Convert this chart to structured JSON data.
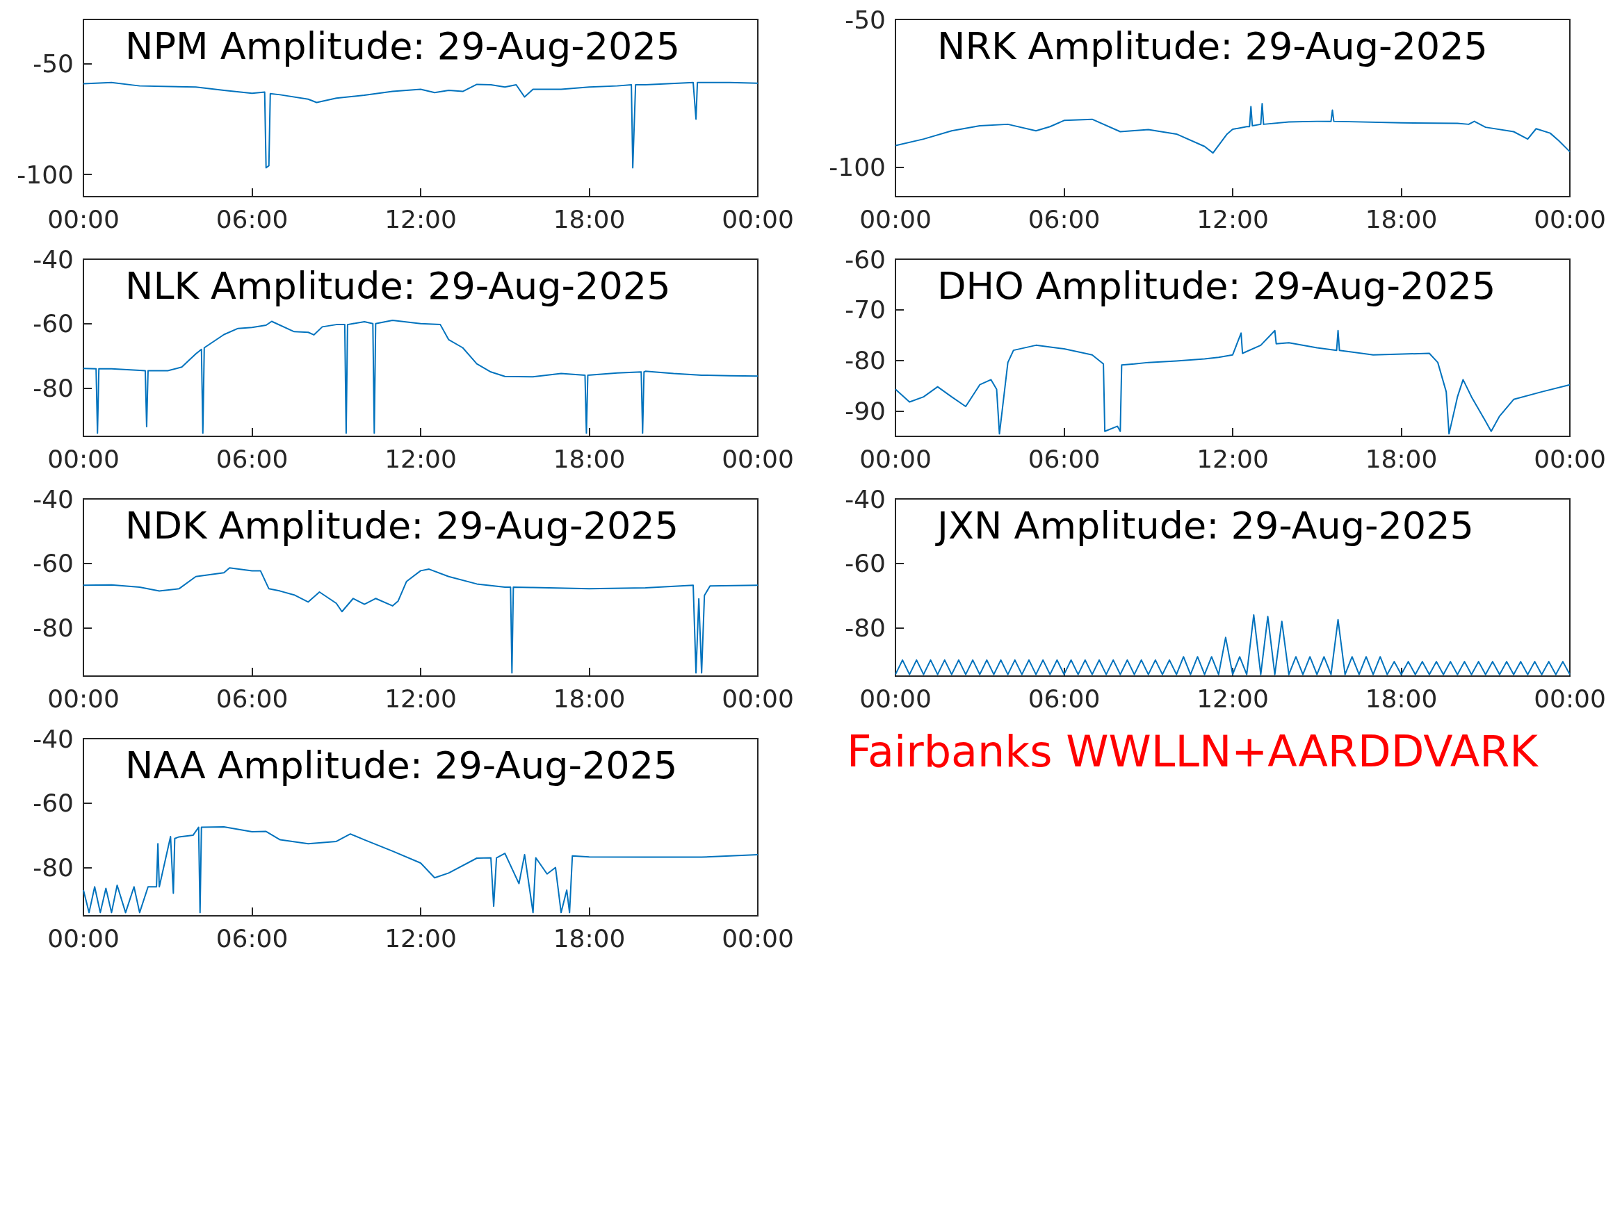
{
  "chart_data": [
    {
      "type": "line",
      "title": "NPM Amplitude: 29-Aug-2025",
      "color": "#0072bd",
      "marker": "none",
      "xlim": [
        0,
        24
      ],
      "xticks": [
        {
          "value": 0,
          "label": "00:00"
        },
        {
          "value": 6,
          "label": "06:00"
        },
        {
          "value": 12,
          "label": "12:00"
        },
        {
          "value": 18,
          "label": "18:00"
        },
        {
          "value": 24,
          "label": "00:00"
        }
      ],
      "ylim": [
        -110,
        -30
      ],
      "yticks": [
        -100,
        -50
      ],
      "x": [
        0,
        1,
        2,
        4,
        5,
        6,
        6.45,
        6.5,
        6.6,
        6.65,
        7,
        8,
        8.3,
        9,
        10,
        11,
        12,
        12.5,
        13,
        13.5,
        14,
        14.5,
        15,
        15.4,
        15.7,
        16,
        17,
        18,
        19,
        19.5,
        19.55,
        19.65,
        20,
        21.7,
        21.8,
        21.85,
        23,
        24
      ],
      "values": [
        -59,
        -58.5,
        -60,
        -60.5,
        -62,
        -63.3,
        -62.8,
        -97,
        -96,
        -63.5,
        -64,
        -66,
        -67.5,
        -65.5,
        -64.2,
        -62.5,
        -61.5,
        -63,
        -62,
        -62.5,
        -59.3,
        -59.5,
        -60.5,
        -59.5,
        -65,
        -61.5,
        -61.5,
        -60.5,
        -60,
        -59.5,
        -97,
        -59.5,
        -59.5,
        -58.5,
        -75,
        -58.5,
        -58.5,
        -58.8
      ]
    },
    {
      "type": "line",
      "title": "NRK Amplitude: 29-Aug-2025",
      "color": "#0072bd",
      "marker": "none",
      "xlim": [
        0,
        24
      ],
      "xticks": [
        {
          "value": 0,
          "label": "00:00"
        },
        {
          "value": 6,
          "label": "06:00"
        },
        {
          "value": 12,
          "label": "12:00"
        },
        {
          "value": 18,
          "label": "18:00"
        },
        {
          "value": 24,
          "label": "00:00"
        }
      ],
      "ylim": [
        -110,
        -50
      ],
      "yticks": [
        -100,
        -50
      ],
      "x": [
        0,
        1,
        2,
        3,
        4,
        5,
        5.5,
        6,
        7,
        8,
        9,
        10,
        11,
        11.3,
        11.8,
        12,
        12.5,
        12.6,
        12.65,
        12.7,
        13,
        13.05,
        13.1,
        14,
        15,
        15.5,
        15.55,
        15.6,
        18,
        20,
        20.4,
        20.6,
        21,
        22,
        22.5,
        22.8,
        23.3,
        23.6,
        24
      ],
      "values": [
        -92.7,
        -90.5,
        -87.7,
        -86,
        -85.5,
        -87.7,
        -86.3,
        -84.2,
        -83.8,
        -88,
        -87.3,
        -88.8,
        -93,
        -95.2,
        -88.8,
        -87.2,
        -86.3,
        -86.3,
        -79.5,
        -86,
        -85.5,
        -78.5,
        -85.5,
        -84.7,
        -84.5,
        -84.5,
        -80.7,
        -84.5,
        -85,
        -85.2,
        -85.5,
        -84.5,
        -86.5,
        -88,
        -90.5,
        -87,
        -88.5,
        -91,
        -94.8
      ]
    },
    {
      "type": "line",
      "title": "NLK Amplitude: 29-Aug-2025",
      "color": "#0072bd",
      "marker": "none",
      "xlim": [
        0,
        24
      ],
      "xticks": [
        {
          "value": 0,
          "label": "00:00"
        },
        {
          "value": 6,
          "label": "06:00"
        },
        {
          "value": 12,
          "label": "12:00"
        },
        {
          "value": 18,
          "label": "18:00"
        },
        {
          "value": 24,
          "label": "00:00"
        }
      ],
      "ylim": [
        -95,
        -40
      ],
      "yticks": [
        -80,
        -60,
        -40
      ],
      "x": [
        0,
        0.45,
        0.5,
        0.55,
        1,
        2,
        2.2,
        2.25,
        2.3,
        3,
        3.5,
        4,
        4.2,
        4.25,
        4.3,
        5,
        5.5,
        6,
        6.5,
        6.7,
        7.5,
        8,
        8.2,
        8.5,
        9,
        9.3,
        9.35,
        9.4,
        10,
        10.3,
        10.35,
        10.4,
        11,
        12,
        12.7,
        13,
        13.5,
        14,
        14.5,
        15,
        16,
        17,
        17.85,
        17.9,
        17.95,
        19,
        19.85,
        19.9,
        19.95,
        20,
        21,
        22,
        23,
        24
      ],
      "values": [
        -73.9,
        -74,
        -94,
        -74,
        -74,
        -74.5,
        -74.6,
        -92,
        -74.6,
        -74.6,
        -73.5,
        -69.4,
        -68,
        -94,
        -67.5,
        -63.4,
        -61.5,
        -61.2,
        -60.5,
        -59.3,
        -62.5,
        -62.7,
        -63.5,
        -61,
        -60.3,
        -60.3,
        -94,
        -60.3,
        -59.4,
        -60,
        -94,
        -60,
        -59,
        -60,
        -60.3,
        -65,
        -67.5,
        -72.5,
        -75,
        -76.4,
        -76.5,
        -75.5,
        -76,
        -94,
        -76,
        -75.3,
        -75,
        -94,
        -75,
        -74.8,
        -75.5,
        -76,
        -76.2,
        -76.3
      ]
    },
    {
      "type": "line",
      "title": "DHO Amplitude: 29-Aug-2025",
      "color": "#0072bd",
      "marker": "none",
      "xlim": [
        0,
        24
      ],
      "xticks": [
        {
          "value": 0,
          "label": "00:00"
        },
        {
          "value": 6,
          "label": "06:00"
        },
        {
          "value": 12,
          "label": "12:00"
        },
        {
          "value": 18,
          "label": "18:00"
        },
        {
          "value": 24,
          "label": "00:00"
        }
      ],
      "ylim": [
        -95,
        -60
      ],
      "yticks": [
        -90,
        -80,
        -70,
        -60
      ],
      "x": [
        0,
        0.5,
        1,
        1.5,
        2,
        2.5,
        3,
        3.4,
        3.6,
        3.7,
        4,
        4.2,
        5,
        6,
        7,
        7.4,
        7.45,
        7.9,
        8,
        8.05,
        8.5,
        9,
        10,
        11,
        11.5,
        12,
        12.3,
        12.35,
        13,
        13.5,
        13.55,
        14,
        15,
        15.7,
        15.75,
        15.8,
        17,
        19,
        19.3,
        19.6,
        19.7,
        20,
        20.2,
        20.5,
        21,
        21.2,
        21.5,
        22,
        23,
        24
      ],
      "values": [
        -85.7,
        -88.2,
        -87.2,
        -85.2,
        -87.2,
        -89.1,
        -84.8,
        -83.8,
        -85.7,
        -94.5,
        -80.4,
        -78,
        -77,
        -77.7,
        -78.9,
        -80.7,
        -94,
        -93,
        -94,
        -80.9,
        -80.7,
        -80.4,
        -80.1,
        -79.7,
        -79.4,
        -78.9,
        -74.6,
        -78.6,
        -77,
        -74.1,
        -76.7,
        -76.5,
        -77.5,
        -78,
        -74.1,
        -78,
        -78.9,
        -78.6,
        -80.4,
        -86.2,
        -94.5,
        -87.2,
        -83.8,
        -87.2,
        -92,
        -94,
        -91,
        -87.7,
        -86.2,
        -84.8
      ]
    },
    {
      "type": "line",
      "title": "NDK Amplitude: 29-Aug-2025",
      "color": "#0072bd",
      "marker": "none",
      "xlim": [
        0,
        24
      ],
      "xticks": [
        {
          "value": 0,
          "label": "00:00"
        },
        {
          "value": 6,
          "label": "06:00"
        },
        {
          "value": 12,
          "label": "12:00"
        },
        {
          "value": 18,
          "label": "18:00"
        },
        {
          "value": 24,
          "label": "00:00"
        }
      ],
      "ylim": [
        -95,
        -40
      ],
      "yticks": [
        -80,
        -60,
        -40
      ],
      "x": [
        0,
        1,
        2,
        2.7,
        3.4,
        4,
        5,
        5.2,
        6,
        6.3,
        6.6,
        7,
        7.5,
        8,
        8.4,
        9,
        9.2,
        9.6,
        10,
        10.4,
        11,
        11.2,
        11.5,
        12,
        12.3,
        13,
        14,
        15,
        15.2,
        15.25,
        15.3,
        16,
        18,
        20,
        21.7,
        21.8,
        21.9,
        22,
        22.1,
        22.3,
        24
      ],
      "values": [
        -66.8,
        -66.7,
        -67.4,
        -68.6,
        -67.9,
        -64.1,
        -62.9,
        -61.4,
        -62.3,
        -62.3,
        -67.9,
        -68.6,
        -69.8,
        -72,
        -68.9,
        -72.4,
        -75,
        -70.9,
        -72.7,
        -70.9,
        -73.2,
        -71.7,
        -65.6,
        -62.3,
        -61.8,
        -64.1,
        -66.4,
        -67.4,
        -67.4,
        -94,
        -67.4,
        -67.5,
        -67.9,
        -67.6,
        -66.8,
        -94,
        -71,
        -94,
        -70,
        -67,
        -66.8
      ]
    },
    {
      "type": "line",
      "title": "JXN Amplitude: 29-Aug-2025",
      "color": "#0072bd",
      "marker": "none",
      "xlim": [
        0,
        24
      ],
      "xticks": [
        {
          "value": 0,
          "label": "00:00"
        },
        {
          "value": 6,
          "label": "06:00"
        },
        {
          "value": 12,
          "label": "12:00"
        },
        {
          "value": 18,
          "label": "18:00"
        },
        {
          "value": 24,
          "label": "00:00"
        }
      ],
      "ylim": [
        -95,
        -40
      ],
      "yticks": [
        -80,
        -60,
        -40
      ],
      "x": [
        0,
        0.25,
        0.5,
        0.75,
        1,
        1.25,
        1.5,
        1.75,
        2,
        2.25,
        2.5,
        2.75,
        3,
        3.25,
        3.5,
        3.75,
        4,
        4.25,
        4.5,
        4.75,
        5,
        5.25,
        5.5,
        5.75,
        6,
        6.25,
        6.5,
        6.75,
        7,
        7.25,
        7.5,
        7.75,
        8,
        8.25,
        8.5,
        8.75,
        9,
        9.25,
        9.5,
        9.75,
        10,
        10.25,
        10.5,
        10.75,
        11,
        11.25,
        11.5,
        11.75,
        12,
        12.25,
        12.5,
        12.75,
        13,
        13.25,
        13.5,
        13.75,
        14,
        14.25,
        14.5,
        14.75,
        15,
        15.25,
        15.5,
        15.75,
        16,
        16.25,
        16.5,
        16.75,
        17,
        17.25,
        17.5,
        17.75,
        18,
        18.25,
        18.5,
        18.75,
        19,
        19.25,
        19.5,
        19.75,
        20,
        20.25,
        20.5,
        20.75,
        21,
        21.25,
        21.5,
        21.75,
        22,
        22.25,
        22.5,
        22.75,
        23,
        23.25,
        23.5,
        23.75,
        24
      ],
      "values": [
        -94.5,
        -90,
        -94.5,
        -90,
        -94.5,
        -90,
        -94.5,
        -90,
        -94.5,
        -90,
        -94.5,
        -90,
        -94.5,
        -90,
        -94.5,
        -90,
        -94.5,
        -90,
        -94.5,
        -90,
        -94.5,
        -90,
        -94.5,
        -90,
        -94.5,
        -90,
        -94.5,
        -90,
        -94.5,
        -90,
        -94.5,
        -90,
        -94.5,
        -90,
        -94.5,
        -90,
        -94.5,
        -90,
        -94.5,
        -90,
        -94.5,
        -89,
        -94.5,
        -89,
        -94.5,
        -89,
        -94.5,
        -83,
        -94.5,
        -89,
        -94.5,
        -76,
        -94.5,
        -76.5,
        -94.5,
        -78,
        -94.5,
        -89,
        -94.5,
        -89,
        -94.5,
        -89,
        -94.5,
        -77.5,
        -94.5,
        -89,
        -94.5,
        -89,
        -94.5,
        -89,
        -94.5,
        -90.5,
        -94.5,
        -90.5,
        -94.5,
        -90.5,
        -94.5,
        -90.5,
        -94.5,
        -90.5,
        -94.5,
        -90.5,
        -94.5,
        -90.5,
        -94.5,
        -90.5,
        -94.5,
        -90.5,
        -94.5,
        -90.5,
        -94.5,
        -90.5,
        -94.5,
        -90.5,
        -94.5,
        -90.5,
        -94.5
      ]
    },
    {
      "type": "line",
      "title": "NAA Amplitude: 29-Aug-2025",
      "color": "#0072bd",
      "marker": "none",
      "xlim": [
        0,
        24
      ],
      "xticks": [
        {
          "value": 0,
          "label": "00:00"
        },
        {
          "value": 6,
          "label": "06:00"
        },
        {
          "value": 12,
          "label": "12:00"
        },
        {
          "value": 18,
          "label": "18:00"
        },
        {
          "value": 24,
          "label": "00:00"
        }
      ],
      "ylim": [
        -95,
        -40
      ],
      "yticks": [
        -80,
        -60,
        -40
      ],
      "x": [
        0,
        0.2,
        0.4,
        0.6,
        0.8,
        1,
        1.2,
        1.5,
        1.8,
        2,
        2.3,
        2.6,
        2.65,
        2.7,
        3.1,
        3.2,
        3.25,
        3.4,
        3.9,
        4.1,
        4.15,
        4.2,
        5,
        6,
        6.5,
        7,
        8,
        9,
        9.5,
        10,
        11,
        12,
        12.5,
        13,
        14,
        14.5,
        14.6,
        14.7,
        15,
        15.5,
        15.7,
        16,
        16.1,
        16.5,
        16.8,
        17,
        17.2,
        17.3,
        17.4,
        18,
        20,
        22,
        24
      ],
      "values": [
        -87,
        -94,
        -86,
        -94,
        -86.5,
        -94,
        -85.5,
        -94,
        -86,
        -94,
        -86,
        -86,
        -72.6,
        -86,
        -70.4,
        -88,
        -71,
        -70.5,
        -70,
        -67.5,
        -94,
        -67.5,
        -67.4,
        -68.9,
        -68.8,
        -71.4,
        -72.6,
        -71.9,
        -69.6,
        -71.4,
        -74.9,
        -78.6,
        -83.2,
        -81.7,
        -77.1,
        -77,
        -92,
        -77,
        -75.6,
        -85,
        -76,
        -94,
        -77,
        -82,
        -80,
        -94,
        -87,
        -94,
        -76.4,
        -76.7,
        -76.8,
        -76.8,
        -76
      ]
    },
    {
      "type": "other",
      "title": "Fairbanks WWLLN+AARDDVARK",
      "color": "#ff0000"
    }
  ]
}
